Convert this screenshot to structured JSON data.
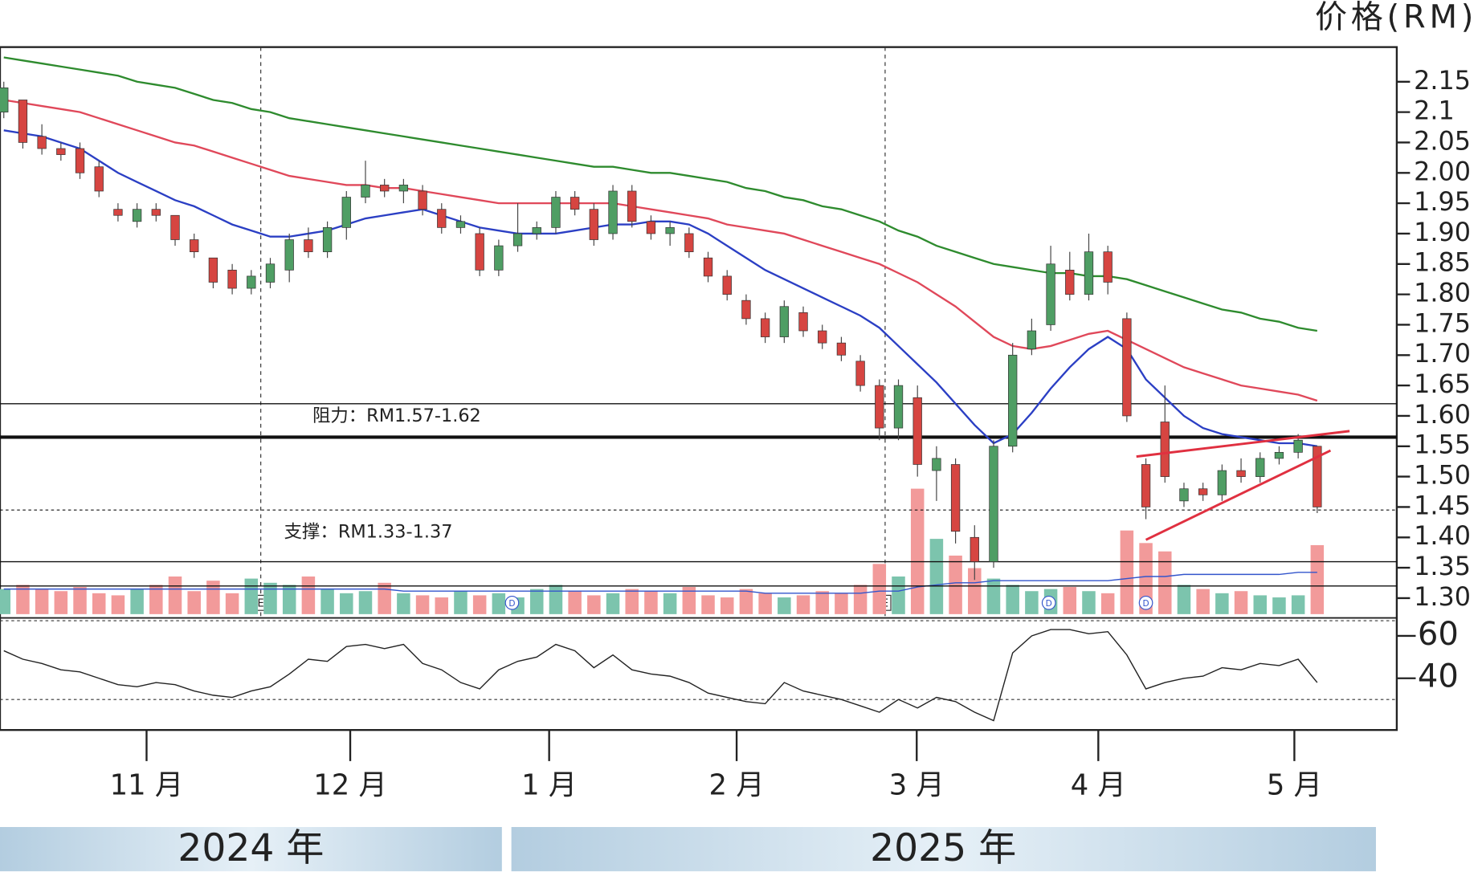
{
  "chart_data": {
    "type": "candlestick",
    "y_axis_title": "价格(RM)",
    "x": [
      0,
      1,
      2,
      3,
      4,
      5,
      6,
      7,
      8,
      9,
      10,
      11,
      12,
      13,
      14,
      15,
      16,
      17,
      18,
      19,
      20,
      21,
      22,
      23,
      24,
      25,
      26,
      27,
      28,
      29,
      30,
      31,
      32,
      33,
      34,
      35,
      36,
      37,
      38,
      39,
      40,
      41,
      42,
      43,
      44,
      45,
      46,
      47,
      48,
      49,
      50,
      51,
      52,
      53,
      54,
      55,
      56,
      57,
      58,
      59,
      60,
      61,
      62,
      63,
      64,
      65,
      66,
      67,
      68,
      69
    ],
    "xlim": [
      -0.2,
      73.18
    ],
    "xticks": [
      {
        "value": 7.5,
        "label": "11 月"
      },
      {
        "value": 18.2,
        "label": "12 月"
      },
      {
        "value": 28.65,
        "label": "1 月"
      },
      {
        "value": 38.5,
        "label": "2 月"
      },
      {
        "value": 47.96,
        "label": "3 月"
      },
      {
        "value": 57.5,
        "label": "4 月"
      },
      {
        "value": 67.8,
        "label": "5 月"
      }
    ],
    "ylim": [
      1.269,
      2.207
    ],
    "yticks": [
      2.15,
      2.1,
      2.05,
      {
        "value": 2,
        "label": "2.00"
      },
      1.95,
      {
        "value": 1.9,
        "label": "1.90"
      },
      1.85,
      {
        "value": 1.8,
        "label": "1.80"
      },
      1.75,
      {
        "value": 1.7,
        "label": "1.70"
      },
      1.65,
      {
        "value": 1.6,
        "label": "1.60"
      },
      1.55,
      {
        "value": 1.5,
        "label": "1.50"
      },
      1.45,
      {
        "value": 1.4,
        "label": "1.40"
      },
      1.35,
      {
        "value": 1.3,
        "label": "1.30"
      }
    ],
    "up_color": "#4f9e64",
    "down_color": "#d64541",
    "candles": {
      "open": [
        2.1,
        2.12,
        2.06,
        2.04,
        2.04,
        2.01,
        1.94,
        1.92,
        1.94,
        1.93,
        1.89,
        1.86,
        1.84,
        1.81,
        1.82,
        1.84,
        1.89,
        1.87,
        1.91,
        1.96,
        1.98,
        1.97,
        1.97,
        1.94,
        1.91,
        1.9,
        1.84,
        1.88,
        1.9,
        1.91,
        1.96,
        1.94,
        1.9,
        1.97,
        1.92,
        1.9,
        1.9,
        1.86,
        1.83,
        1.79,
        1.76,
        1.73,
        1.77,
        1.74,
        1.72,
        1.69,
        1.65,
        1.58,
        1.63,
        1.51,
        1.52,
        1.4,
        1.36,
        1.55,
        1.71,
        1.75,
        1.84,
        1.8,
        1.87,
        1.76,
        1.52,
        1.59,
        1.46,
        1.48,
        1.47,
        1.51,
        1.5,
        1.53,
        1.54,
        1.55
      ],
      "high": [
        2.15,
        2.12,
        2.08,
        2.05,
        2.05,
        2.02,
        1.95,
        1.95,
        1.95,
        1.93,
        1.9,
        1.86,
        1.85,
        1.84,
        1.86,
        1.9,
        1.91,
        1.92,
        1.97,
        2.02,
        1.99,
        1.99,
        1.98,
        1.95,
        1.93,
        1.91,
        1.89,
        1.95,
        1.92,
        1.97,
        1.97,
        1.95,
        1.98,
        1.98,
        1.93,
        1.92,
        1.91,
        1.87,
        1.84,
        1.8,
        1.77,
        1.79,
        1.78,
        1.75,
        1.73,
        1.7,
        1.66,
        1.66,
        1.65,
        1.55,
        1.53,
        1.42,
        1.56,
        1.72,
        1.76,
        1.88,
        1.87,
        1.9,
        1.88,
        1.77,
        1.53,
        1.65,
        1.49,
        1.49,
        1.52,
        1.53,
        1.54,
        1.55,
        1.57,
        1.55
      ],
      "low": [
        2.09,
        2.04,
        2.03,
        2.02,
        1.99,
        1.96,
        1.92,
        1.91,
        1.92,
        1.88,
        1.86,
        1.81,
        1.8,
        1.8,
        1.81,
        1.82,
        1.86,
        1.86,
        1.89,
        1.95,
        1.96,
        1.95,
        1.93,
        1.9,
        1.9,
        1.83,
        1.83,
        1.87,
        1.89,
        1.9,
        1.93,
        1.88,
        1.89,
        1.91,
        1.89,
        1.88,
        1.86,
        1.82,
        1.79,
        1.75,
        1.72,
        1.72,
        1.73,
        1.71,
        1.69,
        1.64,
        1.56,
        1.56,
        1.5,
        1.46,
        1.39,
        1.33,
        1.35,
        1.54,
        1.7,
        1.74,
        1.79,
        1.79,
        1.8,
        1.59,
        1.43,
        1.49,
        1.45,
        1.46,
        1.46,
        1.49,
        1.49,
        1.52,
        1.53,
        1.44
      ],
      "close": [
        2.14,
        2.05,
        2.04,
        2.03,
        2.0,
        1.97,
        1.93,
        1.94,
        1.93,
        1.89,
        1.87,
        1.82,
        1.81,
        1.83,
        1.85,
        1.89,
        1.87,
        1.91,
        1.96,
        1.98,
        1.97,
        1.98,
        1.94,
        1.91,
        1.92,
        1.84,
        1.88,
        1.9,
        1.91,
        1.96,
        1.94,
        1.89,
        1.97,
        1.92,
        1.9,
        1.91,
        1.87,
        1.83,
        1.8,
        1.76,
        1.73,
        1.78,
        1.74,
        1.72,
        1.7,
        1.65,
        1.58,
        1.65,
        1.52,
        1.53,
        1.41,
        1.36,
        1.55,
        1.7,
        1.74,
        1.85,
        1.8,
        1.87,
        1.82,
        1.6,
        1.45,
        1.5,
        1.48,
        1.47,
        1.51,
        1.5,
        1.53,
        1.54,
        1.56,
        1.45
      ]
    },
    "moving_averages": [
      {
        "color": "#2b3fc4",
        "values": [
          2.07,
          2.065,
          2.06,
          2.05,
          2.04,
          2.02,
          2.0,
          1.985,
          1.97,
          1.955,
          1.945,
          1.93,
          1.915,
          1.905,
          1.895,
          1.895,
          1.9,
          1.905,
          1.915,
          1.925,
          1.93,
          1.935,
          1.94,
          1.93,
          1.92,
          1.91,
          1.905,
          1.9,
          1.9,
          1.9,
          1.905,
          1.91,
          1.915,
          1.915,
          1.92,
          1.92,
          1.915,
          1.9,
          1.88,
          1.86,
          1.84,
          1.825,
          1.81,
          1.795,
          1.78,
          1.765,
          1.745,
          1.715,
          1.685,
          1.655,
          1.62,
          1.585,
          1.555,
          1.57,
          1.605,
          1.645,
          1.68,
          1.71,
          1.73,
          1.71,
          1.66,
          1.63,
          1.6,
          1.58,
          1.57,
          1.565,
          1.56,
          1.555,
          1.555,
          1.55
        ]
      },
      {
        "color": "#e0485a",
        "values": [
          2.12,
          2.115,
          2.11,
          2.105,
          2.1,
          2.09,
          2.08,
          2.07,
          2.06,
          2.05,
          2.045,
          2.035,
          2.025,
          2.015,
          2.005,
          1.995,
          1.99,
          1.985,
          1.98,
          1.98,
          1.975,
          1.975,
          1.97,
          1.965,
          1.96,
          1.955,
          1.95,
          1.95,
          1.95,
          1.95,
          1.95,
          1.95,
          1.95,
          1.945,
          1.94,
          1.935,
          1.93,
          1.925,
          1.915,
          1.91,
          1.905,
          1.9,
          1.89,
          1.88,
          1.87,
          1.86,
          1.85,
          1.835,
          1.82,
          1.8,
          1.78,
          1.755,
          1.73,
          1.715,
          1.71,
          1.715,
          1.725,
          1.735,
          1.74,
          1.725,
          1.71,
          1.695,
          1.68,
          1.67,
          1.66,
          1.65,
          1.645,
          1.64,
          1.635,
          1.625
        ]
      },
      {
        "color": "#2e8b2e",
        "values": [
          2.19,
          2.185,
          2.18,
          2.175,
          2.17,
          2.165,
          2.16,
          2.15,
          2.145,
          2.14,
          2.13,
          2.12,
          2.115,
          2.105,
          2.1,
          2.09,
          2.085,
          2.08,
          2.075,
          2.07,
          2.065,
          2.06,
          2.055,
          2.05,
          2.045,
          2.04,
          2.035,
          2.03,
          2.025,
          2.02,
          2.015,
          2.01,
          2.01,
          2.005,
          2.0,
          2.0,
          1.995,
          1.99,
          1.985,
          1.975,
          1.97,
          1.96,
          1.955,
          1.945,
          1.94,
          1.93,
          1.92,
          1.905,
          1.895,
          1.88,
          1.87,
          1.86,
          1.85,
          1.845,
          1.84,
          1.835,
          1.835,
          1.83,
          1.83,
          1.825,
          1.815,
          1.805,
          1.795,
          1.785,
          1.775,
          1.77,
          1.76,
          1.755,
          1.745,
          1.74
        ]
      }
    ],
    "volume": {
      "ylim": [
        0,
        100
      ],
      "up_color": "#7cc4ad",
      "down_color": "#f29a9a",
      "values": [
        12,
        14,
        12,
        11,
        13,
        10,
        9,
        12,
        14,
        18,
        11,
        16,
        10,
        17,
        15,
        14,
        18,
        12,
        10,
        11,
        15,
        10,
        9,
        8,
        11,
        9,
        10,
        8,
        12,
        14,
        11,
        9,
        10,
        12,
        11,
        10,
        13,
        9,
        8,
        12,
        10,
        8,
        9,
        11,
        10,
        14,
        24,
        18,
        60,
        36,
        28,
        22,
        17,
        14,
        11,
        12,
        13,
        11,
        10,
        40,
        34,
        30,
        14,
        12,
        10,
        11,
        9,
        8,
        9,
        33
      ],
      "average": {
        "color": "#3355cc",
        "values": [
          12,
          12,
          12,
          12,
          12,
          12,
          12,
          12,
          12,
          12,
          12,
          12,
          12,
          12,
          12,
          12,
          12,
          12,
          12,
          12,
          12,
          11,
          11,
          11,
          11,
          11,
          11,
          11,
          11,
          11,
          11,
          11,
          11,
          11,
          11,
          11,
          11,
          11,
          11,
          11,
          10,
          10,
          10,
          10,
          10,
          10,
          11,
          11,
          13,
          14,
          15,
          15,
          16,
          16,
          16,
          16,
          16,
          16,
          16,
          17,
          18,
          18,
          19,
          19,
          19,
          19,
          19,
          19,
          20,
          20
        ]
      }
    },
    "rsi": {
      "ylim": [
        15.6,
        67.6
      ],
      "yticks": [
        60,
        40
      ],
      "levels": [
        30
      ],
      "color": "#222222",
      "values": [
        53,
        49,
        47,
        44,
        43,
        40,
        37,
        36,
        38,
        37,
        34,
        32,
        31,
        34,
        36,
        42,
        49,
        48,
        55,
        56,
        54,
        56,
        47,
        44,
        38,
        35,
        44,
        48,
        50,
        56,
        53,
        45,
        51,
        44,
        42,
        41,
        38,
        33,
        31,
        29,
        28,
        38,
        34,
        32,
        30,
        27,
        24,
        30,
        26,
        31,
        29,
        24,
        20,
        52,
        60,
        63,
        63,
        61,
        62,
        51,
        35,
        38,
        40,
        41,
        45,
        44,
        47,
        46,
        49,
        38
      ]
    },
    "levels": [
      {
        "value": 1.62,
        "style": "thin"
      },
      {
        "value": 1.565,
        "style": "thick"
      },
      {
        "value": 1.445,
        "style": "dashed"
      },
      {
        "value": 1.36,
        "style": "thin"
      },
      {
        "value": 1.32,
        "style": "thin"
      }
    ],
    "trendlines": [
      {
        "color": "#e03040",
        "x": [
          59.5,
          70.7
        ],
        "values": [
          1.533,
          1.575
        ]
      },
      {
        "color": "#e03040",
        "x": [
          60,
          69.7
        ],
        "values": [
          1.396,
          1.543
        ]
      }
    ],
    "event_lines": {
      "label": "E",
      "x": [
        13.5,
        46.3
      ]
    },
    "dividend_markers": {
      "label": "D",
      "color": "#3355cc",
      "x": [
        26.7,
        54.9,
        60
      ]
    },
    "annotations": [
      "阻力：RM1.57-1.62",
      "支撑：RM1.33-1.37"
    ],
    "years": [
      "2024 年",
      "2025 年"
    ]
  }
}
